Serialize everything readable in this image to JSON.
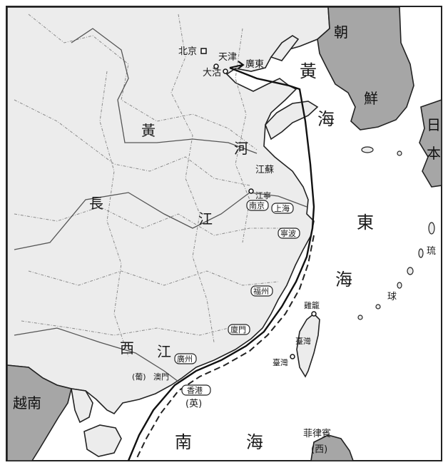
{
  "labels": {
    "beijing": "北京",
    "tianjin": "天津",
    "dagu": "大沽",
    "guangdong_route": "廣東",
    "huang_sea_1": "黃",
    "huang_sea_2": "海",
    "dong_sea_1": "東",
    "dong_sea_2": "海",
    "nan_sea_1": "南",
    "nan_sea_2": "海",
    "huang_he_1": "黃",
    "huang_he_2": "河",
    "chang_jiang_1": "長",
    "chang_jiang_2": "江",
    "xi_jiang_1": "西",
    "xi_jiang_2": "江",
    "korea_1": "朝",
    "korea_2": "鮮",
    "japan_1": "日",
    "japan_2": "本",
    "ryukyu_1": "琉",
    "ryukyu_2": "球",
    "vietnam": "越南",
    "philippines": "菲律賓",
    "philippines_owner": "(西)",
    "jiangsu": "江蘇",
    "jiangning": "江寧",
    "nanjing": "南京",
    "shanghai": "上海",
    "ningbo": "寧波",
    "fuzhou": "福州",
    "xiamen": "廈門",
    "jilong": "雞籠",
    "taiwan_1": "臺灣",
    "taiwan_2": "臺灣",
    "guangzhou": "廣州",
    "macau_owner": "(葡)",
    "macau": "澳門",
    "hongkong": "香港",
    "hongkong_owner": "(英)"
  },
  "colors": {
    "land": "#ececec",
    "foreign_land": "#a6a6a6",
    "sea": "#ffffff",
    "route": "#111111"
  }
}
